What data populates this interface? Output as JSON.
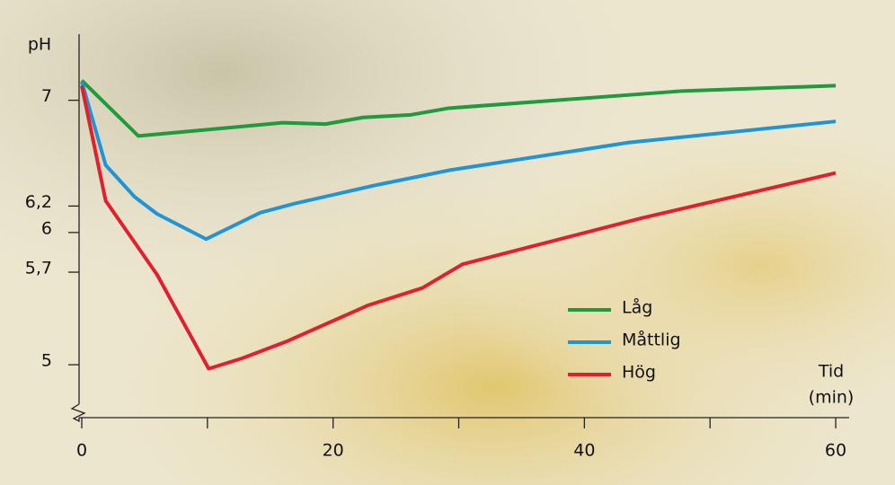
{
  "chart_data": {
    "type": "line",
    "ylabel": "pH",
    "xlabel": "Tid",
    "xunit": "(min)",
    "xlim": [
      0,
      61
    ],
    "ylim": [
      4.6,
      7.5
    ],
    "xticks": [
      0,
      20,
      40,
      60
    ],
    "xminorticks": [
      10,
      30,
      50
    ],
    "yticks": [
      {
        "value": 7,
        "label": "7"
      },
      {
        "value": 6.2,
        "label": "6,2"
      },
      {
        "value": 6,
        "label": "6"
      },
      {
        "value": 5.7,
        "label": "5,7"
      },
      {
        "value": 5,
        "label": "5"
      }
    ],
    "series": [
      {
        "name": "Låg",
        "color": "#1f9a3c",
        "x": [
          0,
          4.5,
          16,
          19.4,
          22.4,
          26.2,
          29.2,
          47.8,
          60
        ],
        "values": [
          7.15,
          6.73,
          6.83,
          6.82,
          6.87,
          6.89,
          6.94,
          7.07,
          7.11
        ]
      },
      {
        "name": "Måttlig",
        "color": "#1f95d6",
        "x": [
          0,
          1.9,
          4.2,
          6,
          9.9,
          14.2,
          17,
          23.5,
          29.2,
          43.5,
          60
        ],
        "values": [
          7.14,
          6.51,
          6.27,
          6.14,
          5.95,
          6.15,
          6.22,
          6.36,
          6.47,
          6.68,
          6.84
        ]
      },
      {
        "name": "Hög",
        "color": "#e0202e",
        "x": [
          0,
          1.9,
          6,
          10.1,
          12.8,
          16.4,
          22.8,
          27.1,
          30.3,
          44.6,
          60
        ],
        "values": [
          7.11,
          6.24,
          5.68,
          4.97,
          5.05,
          5.18,
          5.45,
          5.58,
          5.76,
          6.11,
          6.45
        ]
      }
    ]
  }
}
